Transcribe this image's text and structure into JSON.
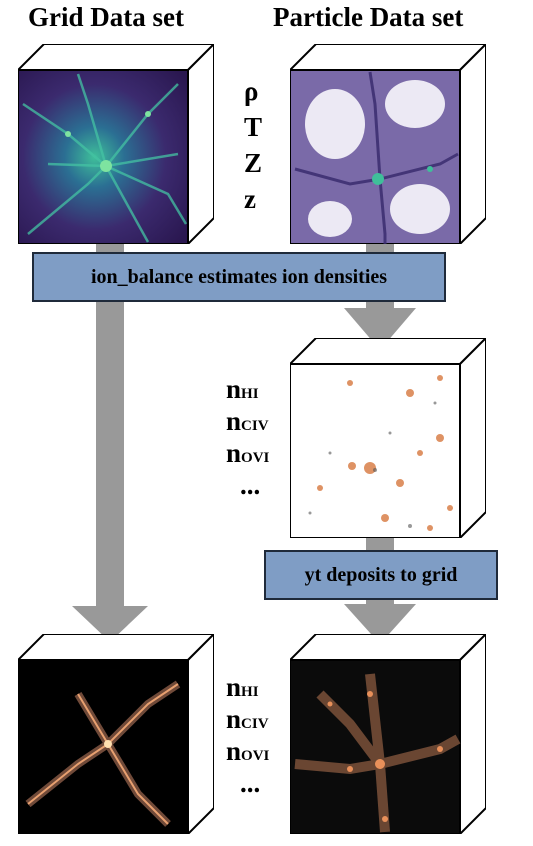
{
  "headings": {
    "grid": "Grid Data set",
    "particle": "Particle Data set"
  },
  "input_fields": [
    "ρ",
    "T",
    "Z",
    "z"
  ],
  "ion_fields_mid": [
    {
      "base": "n",
      "sub": "HI"
    },
    {
      "base": "n",
      "sub": "CIV"
    },
    {
      "base": "n",
      "sub": "OVI"
    },
    {
      "base": "...",
      "sub": ""
    }
  ],
  "ion_fields_bottom": [
    {
      "base": "n",
      "sub": "HI"
    },
    {
      "base": "n",
      "sub": "CIV"
    },
    {
      "base": "n",
      "sub": "OVI"
    },
    {
      "base": "...",
      "sub": ""
    }
  ],
  "banners": {
    "ion_balance": "ion_balance estimates ion densities",
    "deposit": "yt deposits to grid"
  },
  "colors": {
    "banner_fill": "#7f9dc5",
    "arrow": "#999999",
    "grid_density_bg": "#3b2a6e",
    "particle_bg": "#e9e6f2",
    "ion_glow": "#d9804a"
  }
}
